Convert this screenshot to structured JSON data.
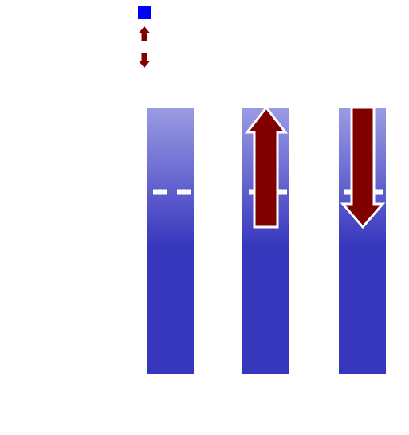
{
  "colors": {
    "background": "#ffffff",
    "legend_square": "#0000ff",
    "column_top": "#9b9be3",
    "column_bottom": "#3737be",
    "arrow_fill": "#800000",
    "arrow_outline": "#ffffff",
    "reference_line": "#ffffff"
  },
  "legend": {
    "items": [
      {
        "icon": "blue-square-icon"
      },
      {
        "icon": "up-arrow-icon"
      },
      {
        "icon": "down-arrow-icon"
      }
    ]
  },
  "columns": [
    {
      "name": "column-1",
      "arrow": "none"
    },
    {
      "name": "column-2",
      "arrow": "up"
    },
    {
      "name": "column-3",
      "arrow": "down"
    }
  ],
  "reference_line": {
    "style": "dashed"
  }
}
